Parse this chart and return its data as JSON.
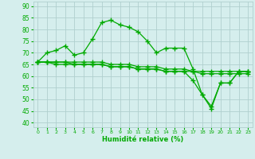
{
  "xlabel": "Humidité relative (%)",
  "xlim": [
    -0.5,
    23.5
  ],
  "ylim": [
    38,
    92
  ],
  "yticks": [
    40,
    45,
    50,
    55,
    60,
    65,
    70,
    75,
    80,
    85,
    90
  ],
  "xticks": [
    0,
    1,
    2,
    3,
    4,
    5,
    6,
    7,
    8,
    9,
    10,
    11,
    12,
    13,
    14,
    15,
    16,
    17,
    18,
    19,
    20,
    21,
    22,
    23
  ],
  "bg_color": "#d5eeed",
  "grid_color": "#b0d0ce",
  "line_color": "#00aa00",
  "lines": [
    {
      "x": [
        0,
        1,
        2,
        3,
        4,
        5,
        6,
        7,
        8,
        9,
        10,
        11,
        12,
        13,
        14,
        15,
        16,
        17,
        18,
        19,
        20,
        21,
        22,
        23
      ],
      "y": [
        66,
        70,
        71,
        73,
        69,
        70,
        76,
        83,
        84,
        82,
        81,
        79,
        75,
        70,
        72,
        72,
        72,
        63,
        52,
        47,
        57,
        57,
        62,
        62
      ]
    },
    {
      "x": [
        0,
        1,
        2,
        3,
        4,
        5,
        6,
        7,
        8,
        9,
        10,
        11,
        12,
        13,
        14,
        15,
        16,
        17,
        18,
        19,
        20,
        21,
        22,
        23
      ],
      "y": [
        66,
        66,
        66,
        66,
        66,
        66,
        66,
        66,
        65,
        65,
        65,
        64,
        64,
        64,
        63,
        63,
        63,
        62,
        62,
        62,
        62,
        62,
        62,
        62
      ]
    },
    {
      "x": [
        0,
        1,
        2,
        3,
        4,
        5,
        6,
        7,
        8,
        9,
        10,
        11,
        12,
        13,
        14,
        15,
        16,
        17,
        18,
        19,
        20,
        21,
        22,
        23
      ],
      "y": [
        66,
        66,
        65,
        65,
        65,
        65,
        65,
        65,
        64,
        64,
        64,
        63,
        63,
        63,
        62,
        62,
        62,
        62,
        61,
        61,
        61,
        61,
        61,
        61
      ]
    },
    {
      "x": [
        0,
        1,
        2,
        3,
        4,
        5,
        6,
        7,
        8,
        9,
        10,
        11,
        12,
        13,
        14,
        15,
        16,
        17,
        18,
        19,
        20,
        21,
        22,
        23
      ],
      "y": [
        66,
        66,
        66,
        66,
        65,
        65,
        65,
        65,
        64,
        64,
        64,
        63,
        63,
        63,
        62,
        62,
        62,
        58,
        52,
        46,
        57,
        57,
        62,
        62
      ]
    }
  ]
}
